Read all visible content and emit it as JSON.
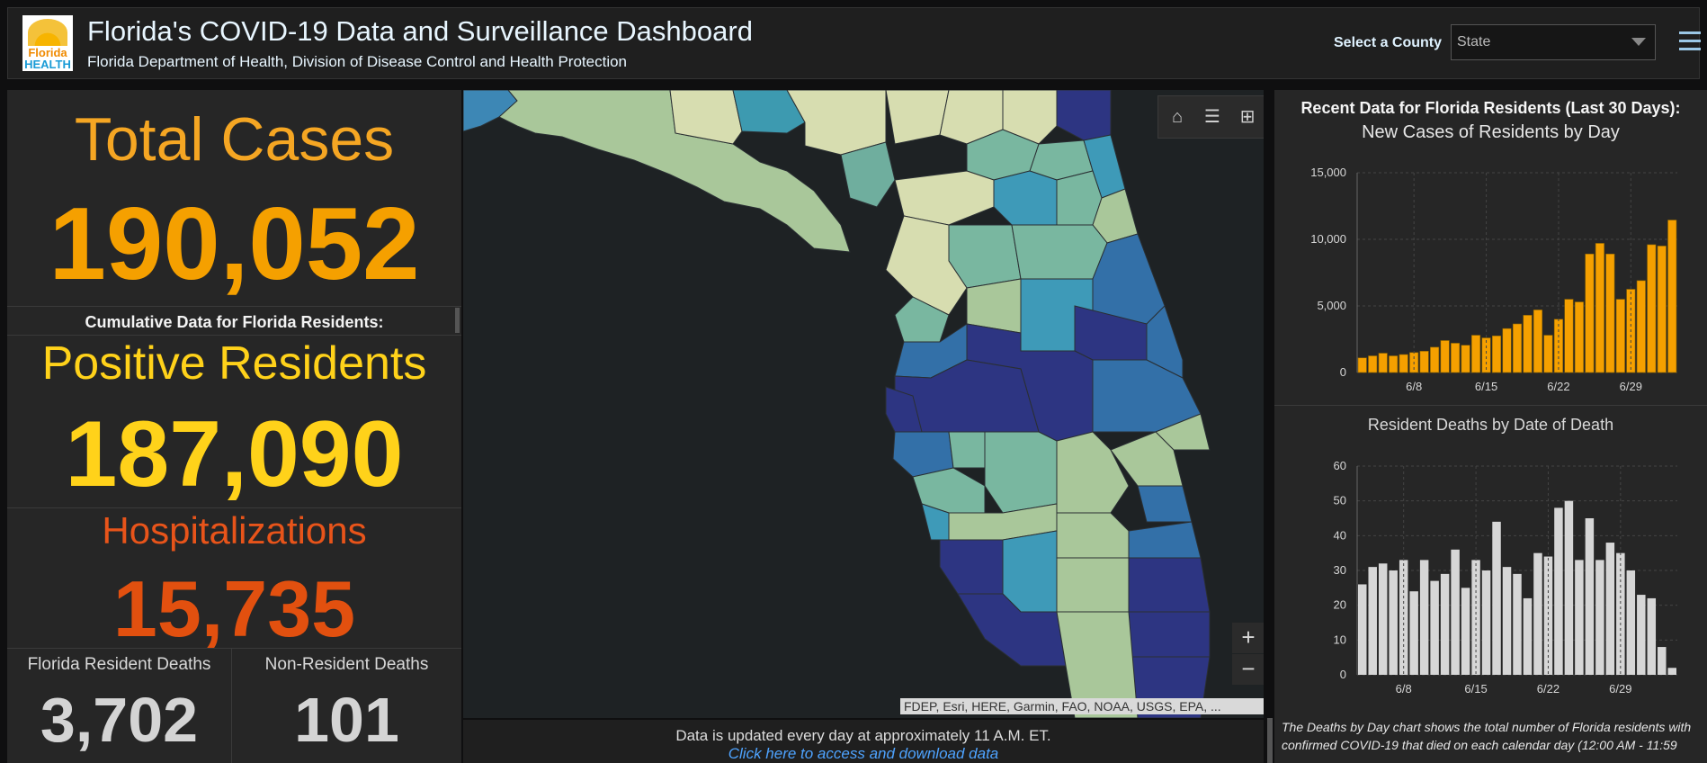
{
  "header": {
    "title": "Florida's COVID-19 Data and Surveillance Dashboard",
    "subtitle": "Florida Department of Health, Division of Disease Control and Health Protection",
    "logo_word1": "Florida",
    "logo_word2": "HEALTH",
    "county_label": "Select a County",
    "county_value": "State"
  },
  "left": {
    "total_cases_label": "Total Cases",
    "total_cases_value": "190,052",
    "cumulative_label": "Cumulative Data for Florida Residents:",
    "positive_label": "Positive Residents",
    "positive_value": "187,090",
    "hosp_label": "Hospitalizations",
    "hosp_value": "15,735",
    "resident_deaths_label": "Florida Resident Deaths",
    "resident_deaths_value": "3,702",
    "nonresident_deaths_label": "Non-Resident Deaths",
    "nonresident_deaths_value": "101"
  },
  "map": {
    "attribution": "FDEP, Esri, HERE, Garmin, FAO, NOAA, USGS, EPA, ...",
    "update_text": "Data is updated every day at approximately 11 A.M. ET.",
    "download_link": "Click here to access and download data",
    "zoom_in": "+",
    "zoom_out": "−"
  },
  "right": {
    "title": "Recent Data for Florida Residents (Last 30 Days):",
    "note": "The Deaths by Day chart shows the total number of Florida residents with confirmed COVID-19 that died on each calendar day (12:00 AM - 11:59"
  },
  "colors": {
    "orange": "#f5a000",
    "yellow": "#ffd21a",
    "red_orange": "#e2500f",
    "gray_bar": "#d6d6d6"
  },
  "chart_data": [
    {
      "type": "bar",
      "title": "New Cases of Residents by Day",
      "x_tick_labels": [
        "6/8",
        "6/15",
        "6/22",
        "6/29"
      ],
      "ylim": [
        0,
        15000
      ],
      "y_ticks": [
        "0",
        "5,000",
        "10,000",
        "15,000"
      ],
      "values": [
        1100,
        1250,
        1450,
        1250,
        1350,
        1500,
        1600,
        1900,
        2400,
        2200,
        2050,
        2800,
        2600,
        2750,
        3300,
        3650,
        4300,
        4700,
        2800,
        4000,
        5500,
        5300,
        8900,
        9700,
        8900,
        5500,
        6250,
        6900,
        9600,
        9500,
        11450
      ],
      "color": "#f5a000"
    },
    {
      "type": "bar",
      "title": "Resident Deaths by Date of Death",
      "x_tick_labels": [
        "6/8",
        "6/15",
        "6/22",
        "6/29"
      ],
      "ylim": [
        0,
        60
      ],
      "y_ticks": [
        "0",
        "10",
        "20",
        "30",
        "40",
        "50",
        "60"
      ],
      "values": [
        26,
        31,
        32,
        30,
        33,
        24,
        33,
        27,
        29,
        36,
        25,
        33,
        30,
        44,
        31,
        29,
        22,
        35,
        34,
        48,
        50,
        33,
        45,
        33,
        38,
        35,
        30,
        23,
        22,
        8,
        2
      ],
      "color": "#d6d6d6"
    }
  ]
}
